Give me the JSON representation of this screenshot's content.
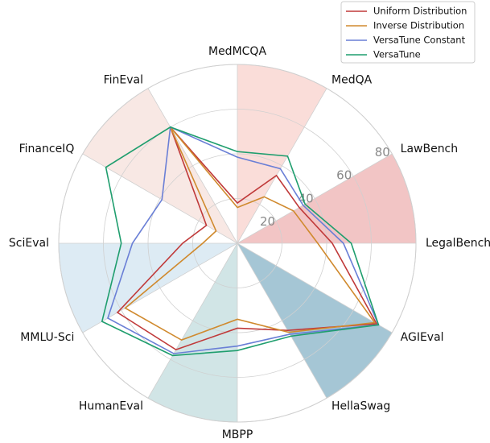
{
  "chart_data": {
    "type": "radar",
    "categories": [
      "MedMCQA",
      "MedQA",
      "LawBench",
      "LegalBench",
      "AGIEval",
      "HellaSwag",
      "MBPP",
      "HumanEval",
      "MMLU-Sci",
      "SciEval",
      "FinanceIQ",
      "FinEval"
    ],
    "series": [
      {
        "name": "Uniform Distribution",
        "color": "#c03a3a",
        "values": [
          18,
          35,
          32,
          42.5,
          72,
          45,
          38,
          55,
          62,
          24.5,
          16,
          60
        ]
      },
      {
        "name": "Inverse Distribution",
        "color": "#d08a2e",
        "values": [
          16,
          24,
          29,
          36,
          71,
          46,
          34,
          50,
          58,
          15.5,
          11,
          60
        ]
      },
      {
        "name": "VersaTune Constant",
        "color": "#6a7fd6",
        "values": [
          38.5,
          38.5,
          34,
          47.5,
          73,
          47,
          46,
          57,
          67,
          47,
          39,
          60
        ]
      },
      {
        "name": "VersaTune",
        "color": "#1f9e6e",
        "values": [
          41,
          45,
          35,
          51,
          73,
          48,
          48,
          58,
          70,
          52,
          68,
          60
        ]
      }
    ],
    "ylim": [
      0,
      80
    ],
    "yticks": [
      20,
      40,
      60,
      80
    ],
    "grid": true
  }
}
